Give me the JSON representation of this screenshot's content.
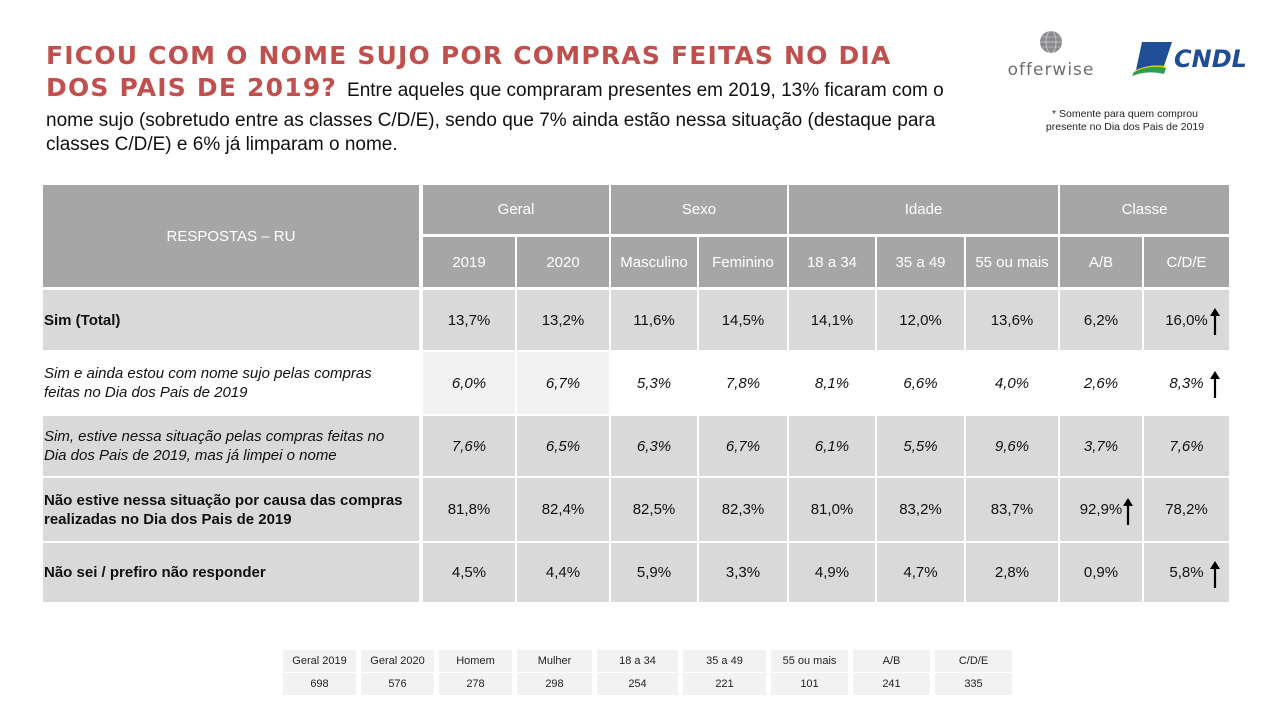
{
  "title": {
    "headline_line1": "FICOU COM O NOME SUJO POR COMPRAS FEITAS NO DIA",
    "headline_line2": "DOS PAIS DE 2019?",
    "intro_line2": "Entre aqueles que compraram presentes em 2019, 13% ficaram com o",
    "subtitle_line1": "nome sujo (sobretudo entre as classes C/D/E), sendo que 7% ainda estão nessa situação (destaque para",
    "subtitle_line2": "classes C/D/E) e 6% já limparam o nome."
  },
  "logos": {
    "offerwise": "offerwise",
    "cndl": "CNDL"
  },
  "footnote": {
    "line1": "* Somente para quem comprou",
    "line2": "presente no Dia dos Pais de 2019"
  },
  "colors": {
    "title_red": "#c0504d",
    "header_gray": "#a6a6a6",
    "row_gray": "#d9d9d9",
    "row_light": "#f2f2f2",
    "cndl_blue": "#1f4e96",
    "cndl_green": "#2e9e4f"
  },
  "table": {
    "respostas_label": "RESPOSTAS – RU",
    "groups": [
      "Geral",
      "Sexo",
      "Idade",
      "Classe"
    ],
    "columns": [
      "2019",
      "2020",
      "Masculino",
      "Feminino",
      "18 a 34",
      "35 a 49",
      "55 ou mais",
      "A/B",
      "C/D/E"
    ],
    "rows": [
      {
        "label": "Sim (Total)",
        "values": [
          "13,7%",
          "13,2%",
          "11,6%",
          "14,5%",
          "14,1%",
          "12,0%",
          "13,6%",
          "6,2%",
          "16,0%"
        ]
      },
      {
        "label": "Sim e ainda estou com nome sujo pelas compras feitas no Dia dos Pais de 2019",
        "values": [
          "6,0%",
          "6,7%",
          "5,3%",
          "7,8%",
          "8,1%",
          "6,6%",
          "4,0%",
          "2,6%",
          "8,3%"
        ]
      },
      {
        "label": "Sim, estive nessa situação pelas compras feitas no Dia dos Pais de 2019, mas já limpei o nome",
        "values": [
          "7,6%",
          "6,5%",
          "6,3%",
          "6,7%",
          "6,1%",
          "5,5%",
          "9,6%",
          "3,7%",
          "7,6%"
        ]
      },
      {
        "label": "Não estive nessa situação por causa das compras realizadas no Dia dos Pais de 2019",
        "values": [
          "81,8%",
          "82,4%",
          "82,5%",
          "82,3%",
          "81,0%",
          "83,2%",
          "83,7%",
          "92,9%",
          "78,2%"
        ]
      },
      {
        "label": "Não sei / prefiro não responder",
        "values": [
          "4,5%",
          "4,4%",
          "5,9%",
          "3,3%",
          "4,9%",
          "4,7%",
          "2,8%",
          "0,9%",
          "5,8%"
        ]
      }
    ],
    "arrow_markers": [
      {
        "row": 0,
        "col": 8,
        "direction": "up"
      },
      {
        "row": 1,
        "col": 8,
        "direction": "up"
      },
      {
        "row": 3,
        "col": 7,
        "direction": "up"
      },
      {
        "row": 4,
        "col": 8,
        "direction": "up"
      }
    ]
  },
  "base": {
    "labels": [
      "Geral 2019",
      "Geral 2020",
      "Homem",
      "Mulher",
      "18 a 34",
      "35 a 49",
      "55 ou mais",
      "A/B",
      "C/D/E"
    ],
    "values": [
      "698",
      "576",
      "278",
      "298",
      "254",
      "221",
      "101",
      "241",
      "335"
    ]
  }
}
